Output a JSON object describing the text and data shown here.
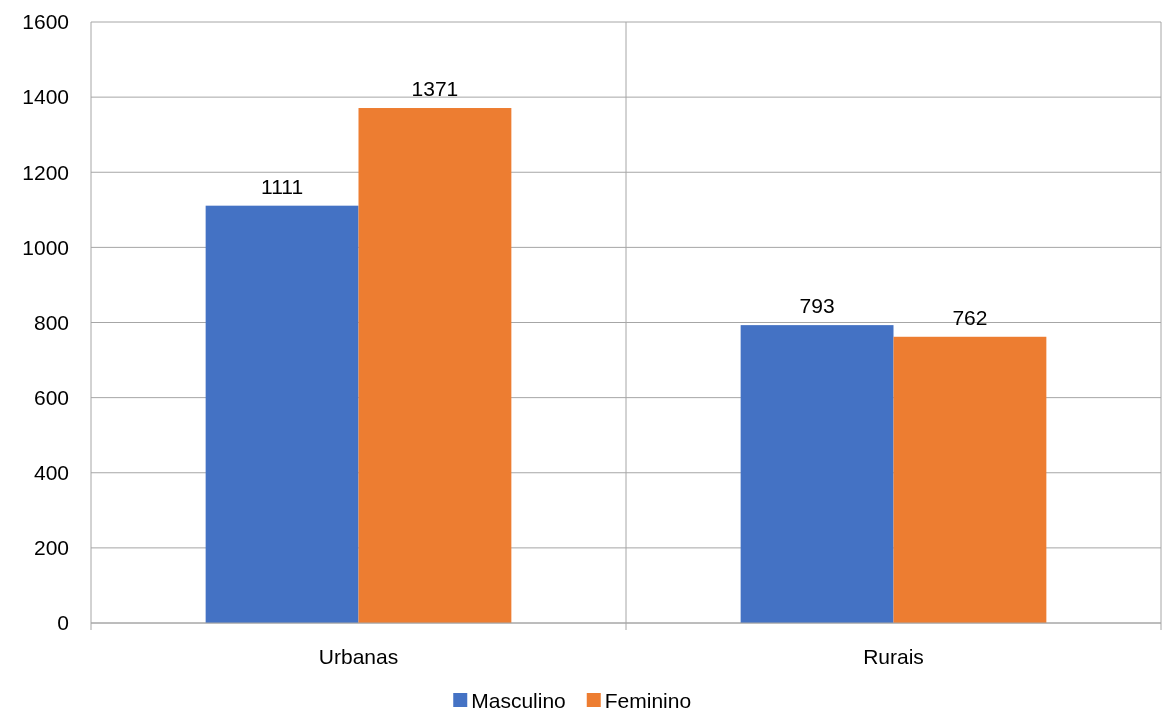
{
  "chart_data": {
    "type": "bar",
    "categories": [
      "Urbanas",
      "Rurais"
    ],
    "series": [
      {
        "name": "Masculino",
        "color": "#4472c4",
        "values": [
          1111,
          793
        ]
      },
      {
        "name": "Feminino",
        "color": "#ed7d31",
        "values": [
          1371,
          762
        ]
      }
    ],
    "ylim": [
      0,
      1600
    ],
    "yticks": [
      0,
      200,
      400,
      600,
      800,
      1000,
      1200,
      1400,
      1600
    ],
    "grid": true,
    "legend": "bottom",
    "data_labels": true
  }
}
